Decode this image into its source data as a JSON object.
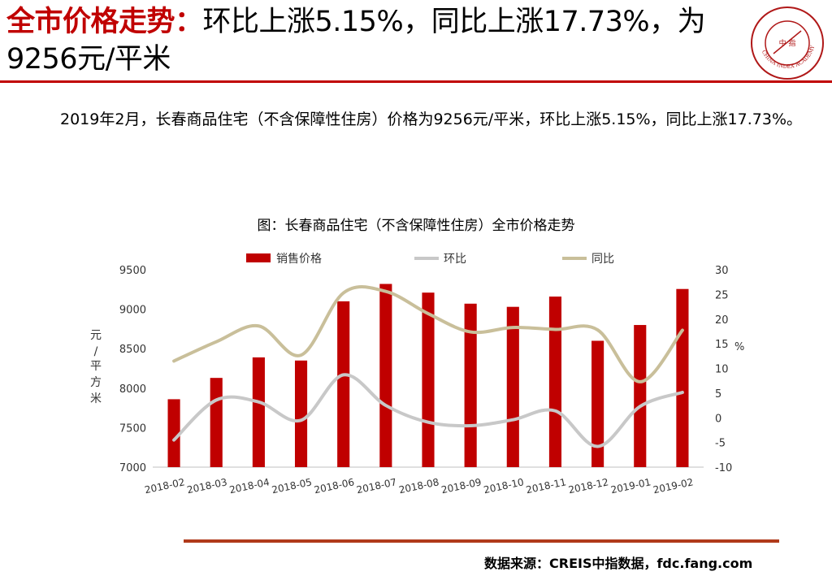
{
  "header": {
    "title_highlight": "全市价格走势：",
    "title_rest": "环比上涨5.15%，同比上涨17.73%，为9256元/平米",
    "logo_text": "CHINA INDEX ACADEMY",
    "logo_center": "中 指"
  },
  "paragraph": "2019年2月，长春商品住宅（不含保障性住房）价格为9256元/平米，环比上涨5.15%，同比上涨17.73%。",
  "chart_title": "图：长春商品住宅（不含保障性住房）全市价格走势",
  "source": "数据来源：CREIS中指数据，fdc.fang.com",
  "colors": {
    "accent": "#c00000",
    "bar": "#c00000",
    "mom_line": "#c8c8c8",
    "yoy_line": "#c9bf9a"
  },
  "chart_data": {
    "type": "bar",
    "categories": [
      "2018-02",
      "2018-03",
      "2018-04",
      "2018-05",
      "2018-06",
      "2018-07",
      "2018-08",
      "2018-09",
      "2018-10",
      "2018-11",
      "2018-12",
      "2019-01",
      "2019-02"
    ],
    "series": [
      {
        "name": "销售价格",
        "type": "bar",
        "axis": "left",
        "values": [
          7860,
          8130,
          8390,
          8350,
          9100,
          9320,
          9210,
          9070,
          9030,
          9160,
          8600,
          8800,
          9256
        ]
      },
      {
        "name": "环比",
        "type": "line",
        "axis": "right",
        "values": [
          -4.5,
          3.6,
          3.2,
          -0.5,
          8.7,
          2.5,
          -0.9,
          -1.6,
          -0.4,
          1.4,
          -5.8,
          2.3,
          5.15
        ]
      },
      {
        "name": "同比",
        "type": "line",
        "axis": "right",
        "values": [
          11.5,
          15.4,
          18.6,
          12.7,
          25.3,
          25.6,
          21.1,
          17.4,
          18.3,
          17.9,
          17.8,
          7.3,
          17.73
        ]
      }
    ],
    "left_axis": {
      "label": "元/平方米",
      "ylim": [
        7000,
        9500
      ],
      "ticks": [
        7000,
        7500,
        8000,
        8500,
        9000,
        9500
      ]
    },
    "right_axis": {
      "label": "%",
      "ylim": [
        -10,
        30
      ],
      "ticks": [
        -10,
        -5,
        0,
        5,
        10,
        15,
        20,
        25,
        30
      ]
    },
    "legend_position": "top",
    "grid": false
  }
}
